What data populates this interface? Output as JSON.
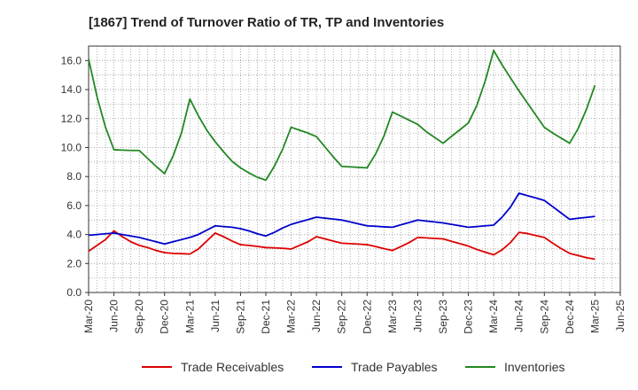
{
  "chart_data": {
    "type": "line",
    "title": "[1867]  Trend of Turnover Ratio of TR, TP and Inventories",
    "xlabel": "",
    "ylabel": "",
    "ylim": [
      0,
      17
    ],
    "yticks": [
      "0.0",
      "2.0",
      "4.0",
      "6.0",
      "8.0",
      "10.0",
      "12.0",
      "14.0",
      "16.0"
    ],
    "ytick_values": [
      0,
      2,
      4,
      6,
      8,
      10,
      12,
      14,
      16
    ],
    "x_start": "Mar-20",
    "x_end": "Jun-25",
    "xticks": [
      "Mar-20",
      "Jun-20",
      "Sep-20",
      "Dec-20",
      "Mar-21",
      "Jun-21",
      "Sep-21",
      "Dec-21",
      "Mar-22",
      "Jun-22",
      "Sep-22",
      "Dec-22",
      "Mar-23",
      "Jun-23",
      "Sep-23",
      "Dec-23",
      "Mar-24",
      "Jun-24",
      "Sep-24",
      "Dec-24",
      "Mar-25",
      "Jun-25"
    ],
    "x": [
      "Mar-20",
      "Apr-20",
      "May-20",
      "Jun-20",
      "Jul-20",
      "Aug-20",
      "Sep-20",
      "Oct-20",
      "Nov-20",
      "Dec-20",
      "Jan-21",
      "Feb-21",
      "Mar-21",
      "Apr-21",
      "May-21",
      "Jun-21",
      "Jul-21",
      "Aug-21",
      "Sep-21",
      "Oct-21",
      "Nov-21",
      "Dec-21",
      "Jan-22",
      "Feb-22",
      "Mar-22",
      "Apr-22",
      "May-22",
      "Jun-22",
      "Jul-22",
      "Aug-22",
      "Sep-22",
      "Oct-22",
      "Nov-22",
      "Dec-22",
      "Jan-23",
      "Feb-23",
      "Mar-23",
      "Apr-23",
      "May-23",
      "Jun-23",
      "Jul-23",
      "Aug-23",
      "Sep-23",
      "Oct-23",
      "Nov-23",
      "Dec-23",
      "Jan-24",
      "Feb-24",
      "Mar-24",
      "Apr-24",
      "May-24",
      "Jun-24",
      "Jul-24",
      "Aug-24",
      "Sep-24",
      "Oct-24",
      "Nov-24",
      "Dec-24",
      "Jan-25",
      "Feb-25",
      "Mar-25"
    ],
    "grid": true,
    "grid_style": "dotted",
    "legend_position": "bottom",
    "series": [
      {
        "name": "Trade Receivables",
        "color": "#dd0000",
        "values": [
          2.85,
          3.25,
          3.65,
          4.25,
          3.85,
          3.5,
          3.25,
          3.1,
          2.9,
          2.75,
          2.7,
          2.68,
          2.65,
          3.0,
          3.55,
          4.1,
          3.85,
          3.55,
          3.3,
          3.25,
          3.18,
          3.1,
          3.08,
          3.05,
          3.0,
          3.25,
          3.5,
          3.85,
          3.7,
          3.55,
          3.4,
          3.37,
          3.34,
          3.3,
          3.17,
          3.03,
          2.9,
          3.17,
          3.45,
          3.8,
          3.77,
          3.73,
          3.7,
          3.53,
          3.37,
          3.2,
          2.97,
          2.78,
          2.6,
          2.95,
          3.45,
          4.15,
          4.07,
          3.93,
          3.8,
          3.4,
          3.03,
          2.7,
          2.55,
          2.4,
          2.3
        ]
      },
      {
        "name": "Trade Payables",
        "color": "#0000cc",
        "values": [
          3.95,
          4.0,
          4.05,
          4.1,
          4.0,
          3.9,
          3.8,
          3.65,
          3.5,
          3.35,
          3.5,
          3.65,
          3.8,
          4.0,
          4.3,
          4.6,
          4.55,
          4.5,
          4.4,
          4.25,
          4.05,
          3.9,
          4.15,
          4.45,
          4.7,
          4.87,
          5.03,
          5.2,
          5.13,
          5.07,
          5.0,
          4.87,
          4.73,
          4.6,
          4.57,
          4.53,
          4.5,
          4.67,
          4.83,
          5.0,
          4.93,
          4.87,
          4.8,
          4.7,
          4.6,
          4.5,
          4.55,
          4.6,
          4.65,
          5.2,
          5.9,
          6.85,
          6.68,
          6.52,
          6.35,
          5.92,
          5.48,
          5.05,
          5.12,
          5.18,
          5.25
        ]
      },
      {
        "name": "Inventories",
        "color": "#228822",
        "values": [
          16.1,
          13.5,
          11.4,
          9.85,
          9.82,
          9.8,
          9.8,
          9.25,
          8.7,
          8.2,
          9.4,
          11.0,
          13.35,
          12.2,
          11.2,
          10.4,
          9.7,
          9.05,
          8.6,
          8.25,
          7.95,
          7.75,
          8.7,
          9.9,
          11.4,
          11.2,
          11.0,
          10.75,
          10.05,
          9.35,
          8.7,
          8.67,
          8.63,
          8.6,
          9.55,
          10.8,
          12.45,
          12.17,
          11.88,
          11.6,
          11.1,
          10.7,
          10.3,
          10.77,
          11.23,
          11.7,
          12.9,
          14.6,
          16.7,
          15.7,
          14.8,
          13.9,
          13.07,
          12.23,
          11.4,
          11.0,
          10.65,
          10.3,
          11.3,
          12.65,
          14.3
        ]
      }
    ]
  }
}
